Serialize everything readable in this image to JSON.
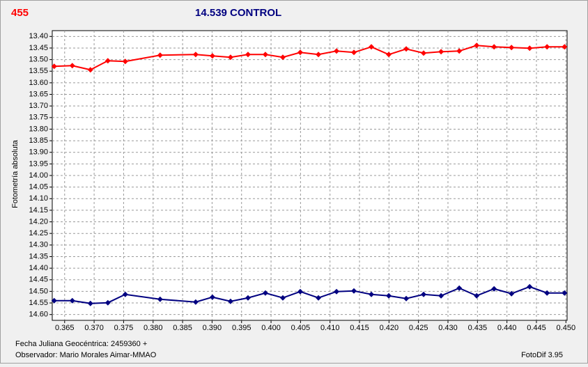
{
  "chart_data": {
    "type": "line",
    "y_label": "Fotometría absoluta",
    "x_label": "Fecha Juliana Geocéntrica:  2459360 +",
    "observer": "Observador: Mario Morales Aimar-MMAO",
    "software": "FotoDif 3.95",
    "y_inverted": true,
    "grid": true,
    "xlim": [
      0.3629,
      0.4502
    ],
    "ylim": [
      13.375,
      14.625
    ],
    "xticks": [
      0.365,
      {
        "value": 0.37,
        "label": "0.370"
      },
      0.375,
      {
        "value": 0.38,
        "label": "0.380"
      },
      0.385,
      {
        "value": 0.39,
        "label": "0.390"
      },
      0.395,
      {
        "value": 0.4,
        "label": "0.400"
      },
      0.405,
      {
        "value": 0.41,
        "label": "0.410"
      },
      0.415,
      {
        "value": 0.42,
        "label": "0.420"
      },
      0.425,
      {
        "value": 0.43,
        "label": "0.430"
      },
      0.435,
      {
        "value": 0.44,
        "label": "0.440"
      },
      0.445,
      {
        "value": 0.45,
        "label": "0.450"
      }
    ],
    "yticks": [
      {
        "value": 13.4,
        "label": "13.40"
      },
      {
        "value": 13.45,
        "label": "13.45"
      },
      {
        "value": 13.5,
        "label": "13.50"
      },
      {
        "value": 13.55,
        "label": "13.55"
      },
      {
        "value": 13.6,
        "label": "13.60"
      },
      {
        "value": 13.65,
        "label": "13.65"
      },
      {
        "value": 13.7,
        "label": "13.70"
      },
      {
        "value": 13.75,
        "label": "13.75"
      },
      {
        "value": 13.8,
        "label": "13.80"
      },
      {
        "value": 13.85,
        "label": "13.85"
      },
      {
        "value": 13.9,
        "label": "13.90"
      },
      {
        "value": 13.95,
        "label": "13.95"
      },
      {
        "value": 14.0,
        "label": "14.00"
      },
      {
        "value": 14.05,
        "label": "14.05"
      },
      {
        "value": 14.1,
        "label": "14.10"
      },
      {
        "value": 14.15,
        "label": "14.15"
      },
      {
        "value": 14.2,
        "label": "14.20"
      },
      {
        "value": 14.25,
        "label": "14.25"
      },
      {
        "value": 14.3,
        "label": "14.30"
      },
      {
        "value": 14.35,
        "label": "14.35"
      },
      {
        "value": 14.4,
        "label": "14.40"
      },
      {
        "value": 14.45,
        "label": "14.45"
      },
      {
        "value": 14.5,
        "label": "14.50"
      },
      {
        "value": 14.55,
        "label": "14.55"
      },
      {
        "value": 14.6,
        "label": "14.60"
      }
    ],
    "x": [
      0.36323,
      0.3663,
      0.36937,
      0.37233,
      0.37528,
      0.38119,
      0.38722,
      0.39006,
      0.39313,
      0.39609,
      0.39904,
      0.402,
      0.40495,
      0.40803,
      0.4111,
      0.41405,
      0.41701,
      0.41996,
      0.42292,
      0.42587,
      0.42883,
      0.43191,
      0.43486,
      0.43782,
      0.44077,
      0.44385,
      0.4468,
      0.44976
    ],
    "series": [
      {
        "name": "455",
        "color": "#ff0000",
        "values": [
          13.529,
          13.526,
          13.544,
          13.505,
          13.508,
          13.481,
          13.478,
          13.484,
          13.49,
          13.478,
          13.478,
          13.49,
          13.469,
          13.478,
          13.463,
          13.469,
          13.445,
          13.478,
          13.454,
          13.472,
          13.466,
          13.463,
          13.439,
          13.445,
          13.448,
          13.451,
          13.445,
          13.445
        ]
      },
      {
        "name": "14.539 CONTROL",
        "color": "#000080",
        "values": [
          14.54,
          14.54,
          14.552,
          14.549,
          14.513,
          14.534,
          14.546,
          14.525,
          14.543,
          14.528,
          14.507,
          14.528,
          14.501,
          14.528,
          14.501,
          14.498,
          14.513,
          14.519,
          14.531,
          14.513,
          14.519,
          14.486,
          14.519,
          14.489,
          14.51,
          14.48,
          14.507,
          14.507
        ]
      }
    ]
  }
}
